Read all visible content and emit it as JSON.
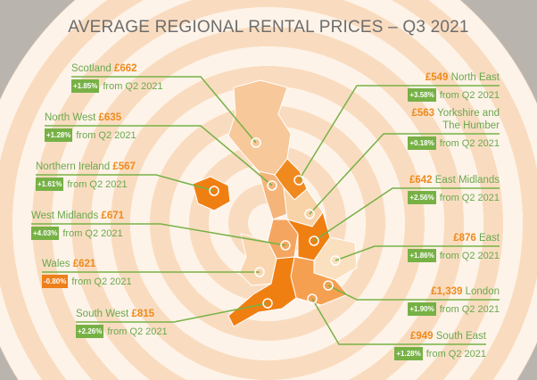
{
  "header": {
    "title": "AVERAGE REGIONAL RENTAL PRICES – Q3 2021"
  },
  "regions": [
    {
      "name": "Scotland",
      "price": "£662",
      "change": "+1.85%",
      "note": "from Q2 2021"
    },
    {
      "name": "North West",
      "price": "£635",
      "change": "+1.28%",
      "note": "from Q2 2021"
    },
    {
      "name": "Northern Ireland",
      "price": "£567",
      "change": "+1.61%",
      "note": "from Q2 2021"
    },
    {
      "name": "West Midlands",
      "price": "£671",
      "change": "+4.03%",
      "note": "from Q2 2021"
    },
    {
      "name": "Wales",
      "price": "£621",
      "change": "-0.80%",
      "note": "from Q2 2021"
    },
    {
      "name": "South West",
      "price": "£815",
      "change": "+2.26%",
      "note": "from Q2 2021"
    },
    {
      "name": "North East",
      "price": "£549",
      "change": "+3.58%",
      "note": "from Q2 2021"
    },
    {
      "name": "Yorkshire and The Humber",
      "price": "£563",
      "change": "+0.18%",
      "note": "from Q2 2021"
    },
    {
      "name": "East Midlands",
      "price": "£642",
      "change": "+2.56%",
      "note": "from Q2 2021"
    },
    {
      "name": "East",
      "price": "£876",
      "change": "+1.86%",
      "note": "from Q2 2021"
    },
    {
      "name": "London",
      "price": "£1,339",
      "change": "+1.90%",
      "note": "from Q2 2021"
    },
    {
      "name": "South East",
      "price": "£949",
      "change": "+1.28%",
      "note": "from Q2 2021"
    }
  ]
}
